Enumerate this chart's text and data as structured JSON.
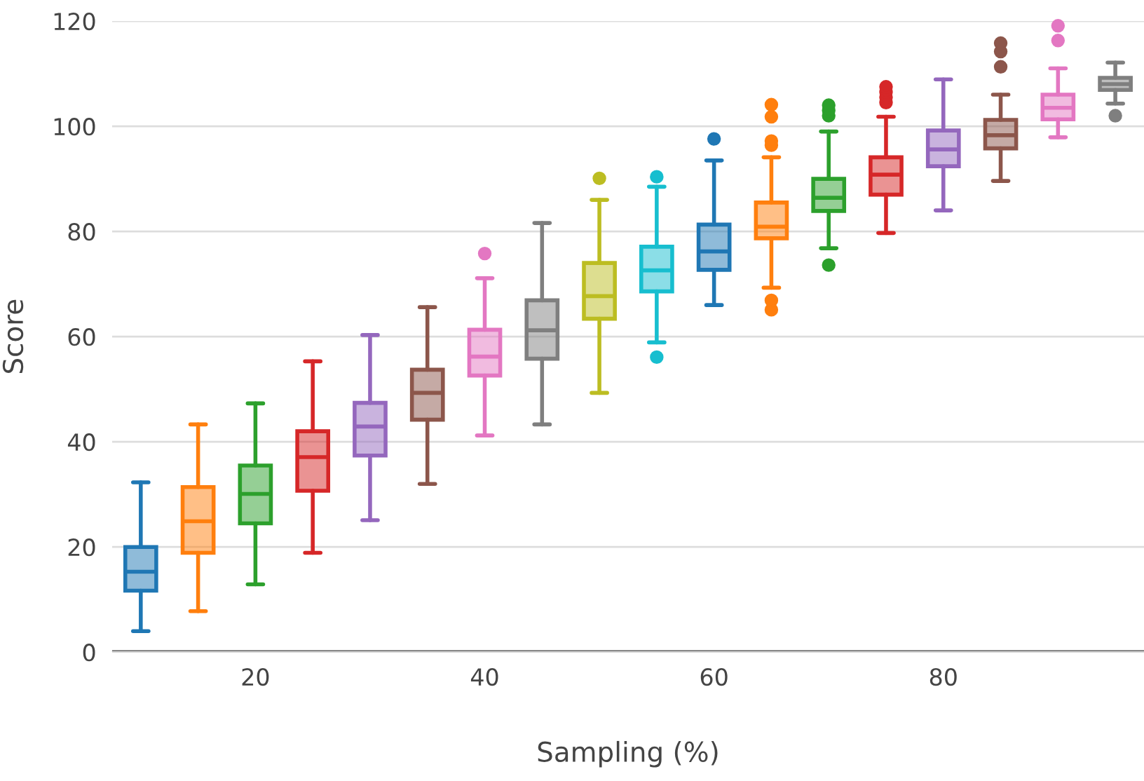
{
  "chart_data": {
    "type": "box",
    "xlabel": "Sampling (%)",
    "ylabel": "Score",
    "x": [
      10,
      15,
      20,
      25,
      30,
      35,
      40,
      45,
      50,
      55,
      60,
      65,
      70,
      75,
      80,
      85,
      90,
      95
    ],
    "colors": [
      "#1f77b4",
      "#ff7f0e",
      "#2ca02c",
      "#d62728",
      "#9467bd",
      "#8c564b",
      "#e377c2",
      "#7f7f7f",
      "#bcbd22",
      "#17becf",
      "#1f77b4",
      "#ff7f0e",
      "#2ca02c",
      "#d62728",
      "#9467bd",
      "#8c564b",
      "#e377c2",
      "#7f7f7f"
    ],
    "boxes": [
      {
        "low": 4,
        "q1": 11.7,
        "median": 15.3,
        "q3": 20,
        "high": 32.3
      },
      {
        "low": 7.8,
        "q1": 18.9,
        "median": 24.9,
        "q3": 31.4,
        "high": 43.3
      },
      {
        "low": 12.9,
        "q1": 24.5,
        "median": 30.1,
        "q3": 35.5,
        "high": 47.3
      },
      {
        "low": 18.9,
        "q1": 30.7,
        "median": 37.1,
        "q3": 42,
        "high": 55.3
      },
      {
        "low": 25.1,
        "q1": 37.4,
        "median": 42.9,
        "q3": 47.4,
        "high": 60.3
      },
      {
        "low": 32,
        "q1": 44.2,
        "median": 49.3,
        "q3": 53.7,
        "high": 65.6
      },
      {
        "low": 41.2,
        "q1": 52.6,
        "median": 56.2,
        "q3": 61.3,
        "high": 71.1,
        "outliers": [
          75.8
        ]
      },
      {
        "low": 43.3,
        "q1": 55.8,
        "median": 61.2,
        "q3": 66.9,
        "high": 81.6
      },
      {
        "low": 49.3,
        "q1": 63.4,
        "median": 67.7,
        "q3": 74,
        "high": 86,
        "outliers": [
          90.1
        ]
      },
      {
        "low": 58.9,
        "q1": 68.6,
        "median": 72.6,
        "q3": 77.1,
        "high": 88.5,
        "outliers": [
          56.1,
          90.4
        ]
      },
      {
        "low": 66,
        "q1": 72.7,
        "median": 76.2,
        "q3": 81.3,
        "high": 93.5,
        "outliers": [
          97.6
        ]
      },
      {
        "low": 69.3,
        "q1": 78.7,
        "median": 80.9,
        "q3": 85.5,
        "high": 94.1,
        "outliers": [
          65.1,
          66.9,
          96.4,
          97.2,
          101.8,
          104.1
        ]
      },
      {
        "low": 76.8,
        "q1": 83.9,
        "median": 86.4,
        "q3": 90,
        "high": 99,
        "outliers": [
          73.6,
          102,
          103,
          104
        ]
      },
      {
        "low": 79.7,
        "q1": 87,
        "median": 90.8,
        "q3": 94.1,
        "high": 101.8,
        "outliers": [
          104.5,
          105.5,
          106.5,
          107.5
        ]
      },
      {
        "low": 84,
        "q1": 92.4,
        "median": 95.6,
        "q3": 99.2,
        "high": 108.9
      },
      {
        "low": 89.6,
        "q1": 95.8,
        "median": 98.3,
        "q3": 101.2,
        "high": 106,
        "outliers": [
          111.3,
          114.2,
          115.8
        ]
      },
      {
        "low": 97.9,
        "q1": 101.3,
        "median": 103.5,
        "q3": 106,
        "high": 111,
        "outliers": [
          116.3,
          119.1
        ]
      },
      {
        "low": 104.3,
        "q1": 106.9,
        "median": 108,
        "q3": 109.2,
        "high": 112.1,
        "outliers": [
          102
        ]
      }
    ],
    "xlim": [
      7.5,
      97.5
    ],
    "xticks": [
      20,
      40,
      60,
      80
    ],
    "ylim": [
      0,
      120
    ],
    "yticks": [
      0,
      20,
      40,
      60,
      80,
      100,
      120
    ],
    "grid": "y"
  }
}
